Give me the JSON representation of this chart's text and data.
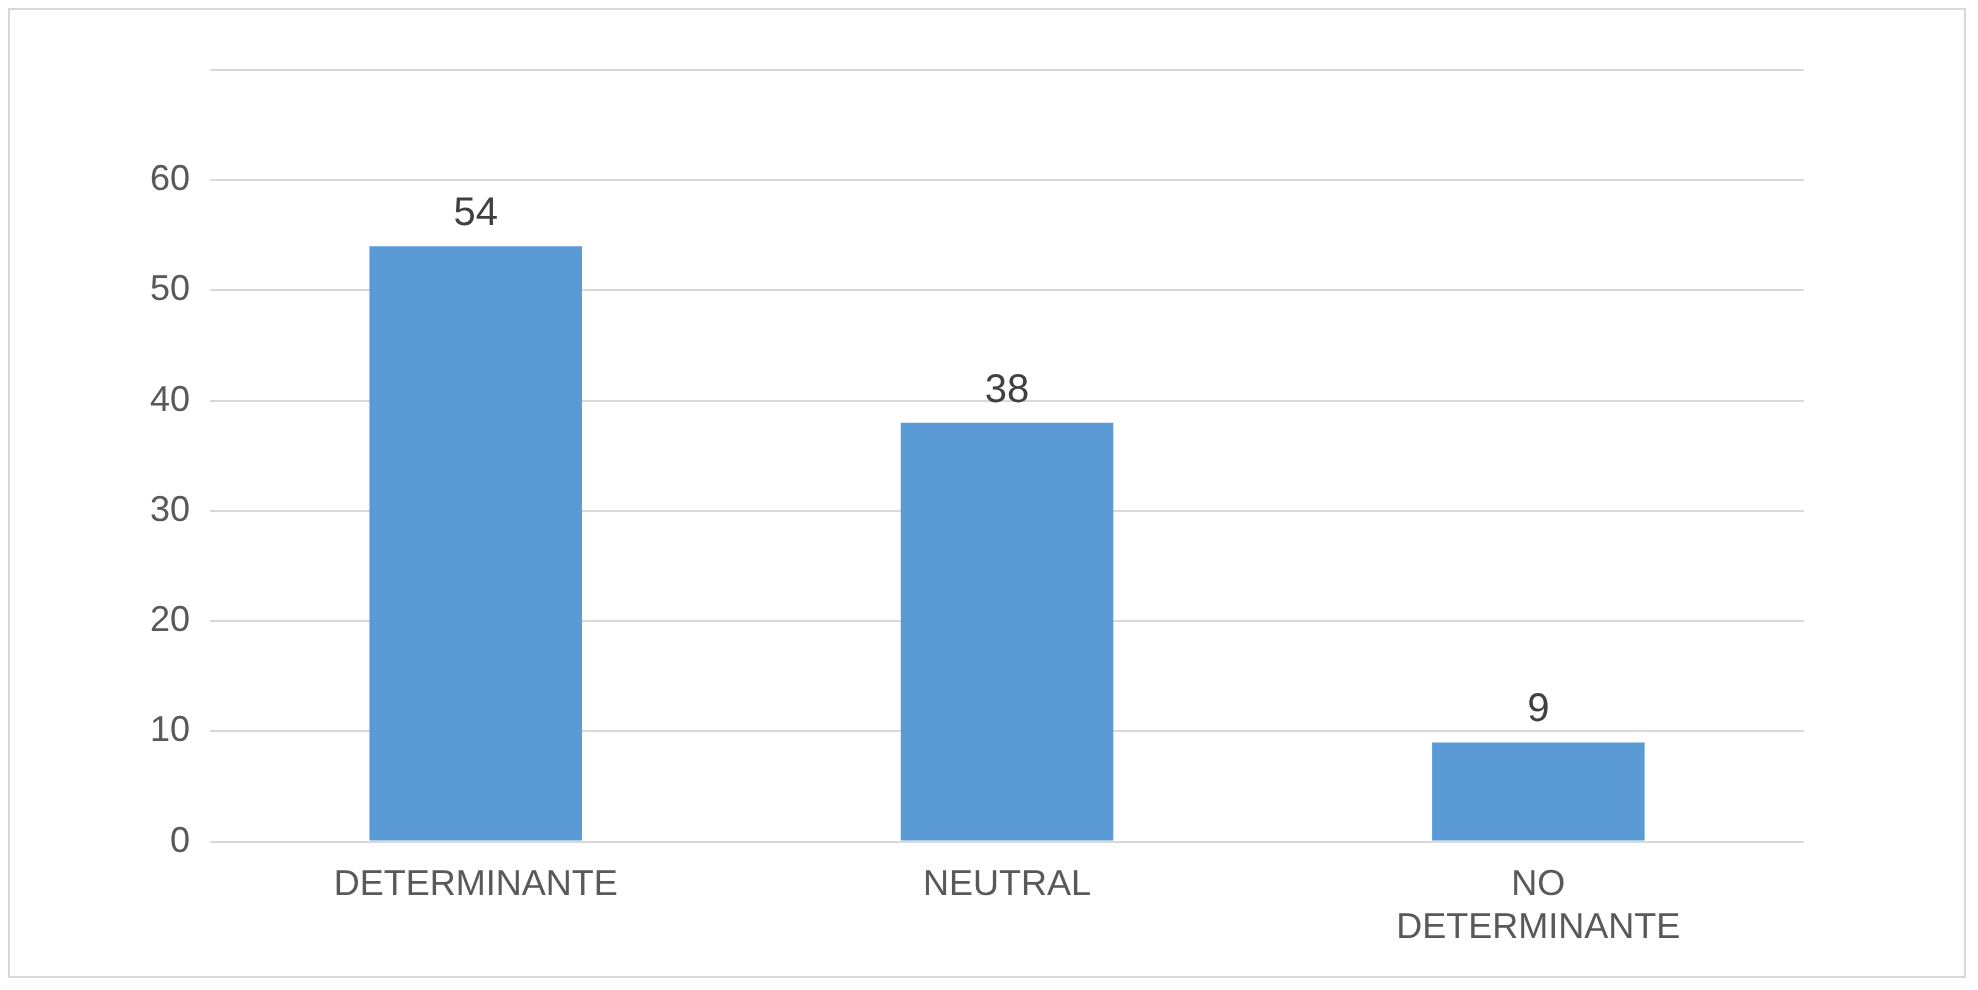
{
  "chart_data": {
    "type": "bar",
    "categories": [
      "DETERMINANTE",
      "NEUTRAL",
      "NO DETERMINANTE"
    ],
    "values": [
      54,
      38,
      9
    ],
    "color": "#5b9bd5",
    "ylim": [
      0,
      70
    ],
    "yticks": [
      0,
      10,
      20,
      30,
      40,
      50,
      60,
      {
        "value": 70,
        "label": null
      }
    ],
    "grid": "y",
    "data_labels": true
  }
}
